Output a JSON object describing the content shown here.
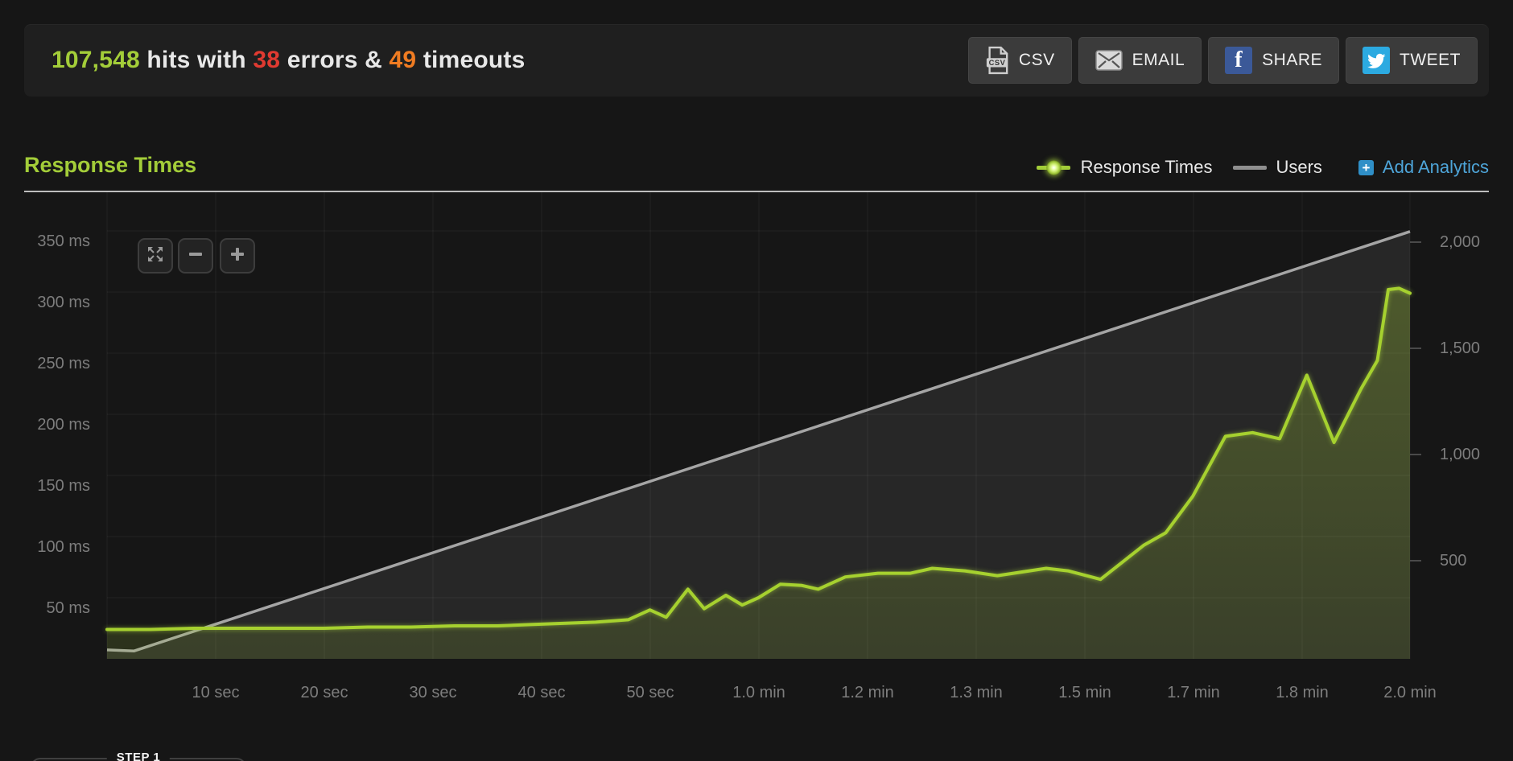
{
  "header": {
    "stats": {
      "hits": "107,548",
      "hits_suffix": " hits with ",
      "errors": "38",
      "errors_suffix": " errors & ",
      "timeouts": "49",
      "timeouts_suffix": " timeouts"
    },
    "buttons": [
      {
        "label": "CSV",
        "icon": "csv-file-icon"
      },
      {
        "label": "EMAIL",
        "icon": "envelope-icon"
      },
      {
        "label": "SHARE",
        "icon": "facebook-icon"
      },
      {
        "label": "TWEET",
        "icon": "twitter-icon"
      }
    ],
    "csv_icon_text": "CSV",
    "facebook_icon_letter": "f"
  },
  "section": {
    "title": "Response Times"
  },
  "legend": {
    "response_times": "Response Times",
    "users": "Users",
    "add_analytics": "Add Analytics",
    "add_icon": "+"
  },
  "chart_data": {
    "type": "area",
    "title": "Response Times",
    "x_unit": "seconds",
    "x_range": [
      0,
      120
    ],
    "grid": true,
    "legend_position": "top-right",
    "x_tick_seconds": [
      10,
      20,
      30,
      40,
      50,
      60,
      70,
      80,
      90,
      100,
      110,
      120
    ],
    "x_tick_labels": [
      "10 sec",
      "20 sec",
      "30 sec",
      "40 sec",
      "50 sec",
      "1.0 min",
      "1.2 min",
      "1.3 min",
      "1.5 min",
      "1.7 min",
      "1.8 min",
      "2.0 min"
    ],
    "left_axis": {
      "unit": "ms",
      "tick_values": [
        350,
        300,
        250,
        200,
        150,
        100,
        50
      ],
      "tick_labels": [
        "350 ms",
        "300 ms",
        "250 ms",
        "200 ms",
        "150 ms",
        "100 ms",
        "50 ms"
      ],
      "range": [
        0,
        382
      ]
    },
    "right_axis": {
      "unit": "users",
      "tick_values": [
        2000,
        1500,
        1000,
        500
      ],
      "tick_labels": [
        "2,000",
        "1,500",
        "1,000",
        "500"
      ],
      "range": [
        0,
        2238
      ]
    },
    "series": [
      {
        "name": "Response Times",
        "axis": "left",
        "color": "#a6d12f",
        "points": [
          [
            0,
            24
          ],
          [
            4,
            24
          ],
          [
            8,
            25
          ],
          [
            12,
            25
          ],
          [
            16,
            25
          ],
          [
            20,
            25
          ],
          [
            24,
            26
          ],
          [
            28,
            26
          ],
          [
            32,
            27
          ],
          [
            36,
            27
          ],
          [
            39,
            28
          ],
          [
            42,
            29
          ],
          [
            45,
            30
          ],
          [
            48,
            32
          ],
          [
            50,
            40
          ],
          [
            51.5,
            34
          ],
          [
            53.5,
            57
          ],
          [
            55,
            41
          ],
          [
            57,
            52
          ],
          [
            58.5,
            44
          ],
          [
            60,
            50
          ],
          [
            62,
            61
          ],
          [
            64,
            60
          ],
          [
            65.5,
            57
          ],
          [
            68,
            67
          ],
          [
            71,
            70
          ],
          [
            74,
            70
          ],
          [
            76,
            74
          ],
          [
            79,
            72
          ],
          [
            82,
            68
          ],
          [
            86.5,
            74
          ],
          [
            88.5,
            72
          ],
          [
            91.5,
            65
          ],
          [
            95.5,
            93
          ],
          [
            97.5,
            103
          ],
          [
            100,
            133
          ],
          [
            103,
            182
          ],
          [
            105.5,
            185
          ],
          [
            108,
            180
          ],
          [
            110.5,
            232
          ],
          [
            113,
            177
          ],
          [
            115.5,
            221
          ],
          [
            117,
            244
          ],
          [
            118,
            302
          ],
          [
            119,
            303
          ],
          [
            120,
            299
          ]
        ]
      },
      {
        "name": "Users",
        "axis": "right",
        "color": "#a5a5a5",
        "points": [
          [
            0,
            80
          ],
          [
            2.5,
            75
          ],
          [
            120,
            2050
          ]
        ]
      }
    ]
  },
  "zoom_controls": {
    "expand": "expand",
    "zoom_out": "−",
    "zoom_in": "+"
  },
  "footer": {
    "step_label": "STEP 1"
  },
  "colors": {
    "accent_green": "#a3cd39",
    "error_red": "#e03a31",
    "timeout_orange": "#f07c22",
    "analytics_blue": "#4ea5d9",
    "facebook_blue": "#3b5998",
    "twitter_blue": "#2caae1"
  }
}
